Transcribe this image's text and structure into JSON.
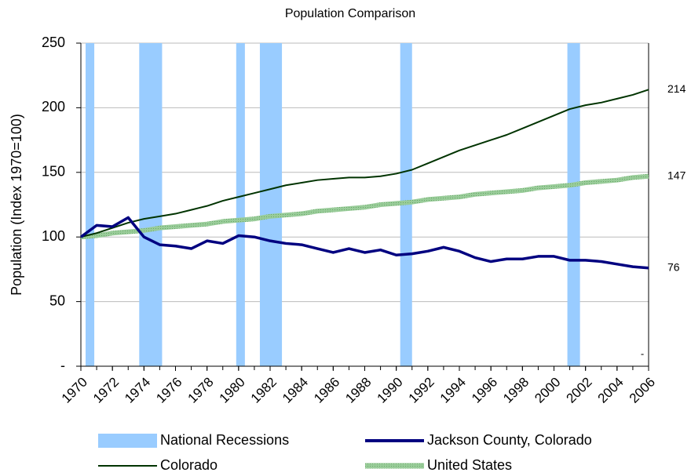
{
  "chart_data": {
    "type": "line",
    "title": "Population Comparison",
    "y_label": "Population (Index 1970=100)",
    "xlim": [
      1970,
      2006
    ],
    "xticks": [
      1970,
      1972,
      1974,
      1976,
      1978,
      1980,
      1982,
      1984,
      1986,
      1988,
      1990,
      1992,
      1994,
      1996,
      1998,
      2000,
      2002,
      2004,
      2006
    ],
    "ylim": [
      0,
      250
    ],
    "yticks": [
      {
        "value": 0,
        "label": "-"
      },
      50,
      100,
      150,
      200,
      250
    ],
    "grid": true,
    "x": [
      1970,
      1971,
      1972,
      1973,
      1974,
      1975,
      1976,
      1977,
      1978,
      1979,
      1980,
      1981,
      1982,
      1983,
      1984,
      1985,
      1986,
      1987,
      1988,
      1989,
      1990,
      1991,
      1992,
      1993,
      1994,
      1995,
      1996,
      1997,
      1998,
      1999,
      2000,
      2001,
      2002,
      2003,
      2004,
      2005,
      2006
    ],
    "recessions": {
      "name": "National Recessions",
      "color": "#99ccff",
      "periods": [
        [
          1970.3,
          1970.85
        ],
        [
          1973.7,
          1975.15
        ],
        [
          1979.85,
          1980.4
        ],
        [
          1981.35,
          1982.75
        ],
        [
          1990.25,
          1991.0
        ],
        [
          2000.85,
          2001.65
        ]
      ],
      "values": [
        250,
        250,
        250,
        250,
        250,
        250
      ]
    },
    "series": [
      {
        "name": "Jackson County, Colorado",
        "color": "#000080",
        "width": 3.5,
        "values": [
          100,
          109,
          108,
          115,
          100,
          94,
          93,
          91,
          97,
          95,
          101,
          100,
          97,
          95,
          94,
          91,
          88,
          91,
          88,
          90,
          86,
          87,
          89,
          92,
          89,
          84,
          81,
          83,
          83,
          85,
          85,
          82,
          82,
          81,
          79,
          77,
          76
        ]
      },
      {
        "name": "Colorado",
        "color": "#003300",
        "width": 2,
        "values": [
          100,
          103,
          107,
          111,
          114,
          116,
          118,
          121,
          124,
          128,
          131,
          134,
          137,
          140,
          142,
          144,
          145,
          146,
          146,
          147,
          149,
          152,
          157,
          162,
          167,
          171,
          175,
          179,
          184,
          189,
          194,
          199,
          202,
          204,
          207,
          210,
          214
        ]
      },
      {
        "name": "United States",
        "color": "#99cc99",
        "width": 6,
        "values": [
          100,
          101,
          103,
          104,
          105,
          107,
          108,
          109,
          110,
          112,
          113,
          114,
          116,
          117,
          118,
          120,
          121,
          122,
          123,
          125,
          126,
          127,
          129,
          130,
          131,
          133,
          134,
          135,
          136,
          138,
          139,
          140,
          142,
          143,
          144,
          146,
          147
        ]
      }
    ],
    "annotations": [
      "-"
    ]
  }
}
